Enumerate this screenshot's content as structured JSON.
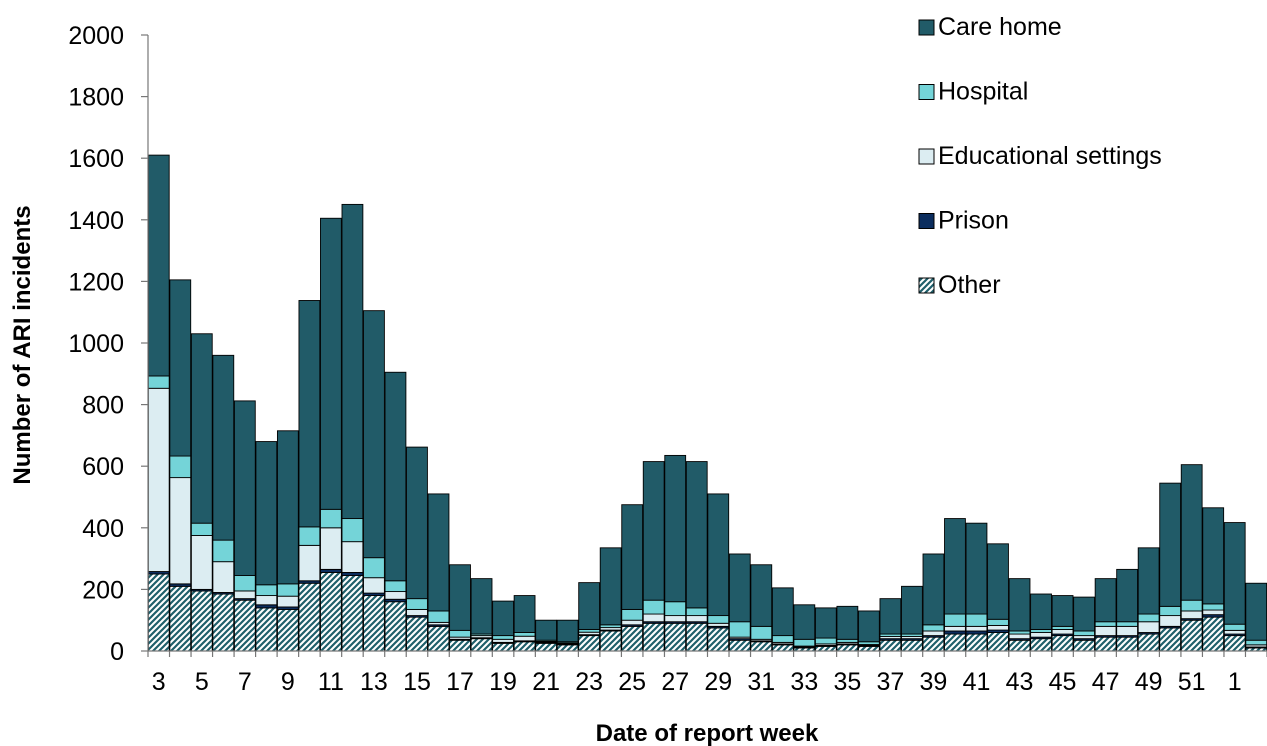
{
  "chart_data": {
    "type": "bar",
    "stacked": true,
    "title": "",
    "xlabel": "Date of report week",
    "ylabel": "Number of ARI incidents",
    "ylim": [
      0,
      2000
    ],
    "yticks": [
      0,
      200,
      400,
      600,
      800,
      1000,
      1200,
      1400,
      1600,
      1800,
      2000
    ],
    "categories": [
      "3",
      "4",
      "5",
      "6",
      "7",
      "8",
      "9",
      "10",
      "11",
      "12",
      "13",
      "14",
      "15",
      "16",
      "17",
      "18",
      "19",
      "20",
      "21",
      "22",
      "23",
      "24",
      "25",
      "26",
      "27",
      "28",
      "29",
      "30",
      "31",
      "32",
      "33",
      "34",
      "35",
      "36",
      "37",
      "38",
      "39",
      "40",
      "41",
      "42",
      "43",
      "44",
      "45",
      "46",
      "47",
      "48",
      "49",
      "50",
      "51",
      "52",
      "1",
      "2"
    ],
    "xtick_labels": [
      "3",
      "5",
      "7",
      "9",
      "11",
      "13",
      "15",
      "17",
      "19",
      "21",
      "23",
      "25",
      "27",
      "29",
      "31",
      "33",
      "35",
      "37",
      "39",
      "41",
      "43",
      "45",
      "47",
      "49",
      "51",
      "1"
    ],
    "legend": [
      "Care home",
      "Hospital",
      "Educational settings",
      "Prison",
      "Other"
    ],
    "legend_position": "top-right",
    "series": [
      {
        "name": "Other",
        "color": "#1f5f6b",
        "pattern": "hatched",
        "values": [
          250,
          210,
          195,
          185,
          165,
          140,
          135,
          220,
          255,
          245,
          180,
          160,
          110,
          80,
          35,
          40,
          25,
          30,
          25,
          20,
          50,
          65,
          80,
          90,
          90,
          90,
          75,
          35,
          30,
          20,
          10,
          15,
          20,
          15,
          35,
          35,
          45,
          55,
          55,
          60,
          35,
          40,
          50,
          35,
          45,
          45,
          55,
          75,
          100,
          110,
          50,
          10
        ]
      },
      {
        "name": "Prison",
        "color": "#0b2d5e",
        "values": [
          8,
          8,
          5,
          5,
          5,
          10,
          8,
          8,
          10,
          10,
          8,
          8,
          5,
          5,
          3,
          3,
          3,
          3,
          3,
          3,
          3,
          3,
          5,
          5,
          5,
          5,
          5,
          5,
          3,
          3,
          3,
          3,
          3,
          3,
          5,
          5,
          5,
          10,
          10,
          8,
          5,
          5,
          5,
          5,
          5,
          5,
          5,
          5,
          5,
          8,
          5,
          3
        ]
      },
      {
        "name": "Educational settings",
        "color": "#dcedf2",
        "values": [
          595,
          345,
          175,
          100,
          25,
          30,
          35,
          115,
          135,
          100,
          50,
          25,
          20,
          8,
          7,
          7,
          10,
          15,
          3,
          3,
          8,
          8,
          15,
          25,
          20,
          20,
          10,
          5,
          5,
          5,
          3,
          5,
          5,
          3,
          7,
          7,
          15,
          15,
          15,
          15,
          15,
          15,
          15,
          10,
          30,
          30,
          35,
          35,
          25,
          15,
          12,
          7
        ]
      },
      {
        "name": "Hospital",
        "color": "#74d4d8",
        "values": [
          40,
          70,
          40,
          70,
          50,
          35,
          40,
          60,
          60,
          75,
          65,
          35,
          35,
          37,
          22,
          5,
          12,
          12,
          4,
          4,
          9,
          9,
          35,
          45,
          45,
          25,
          25,
          50,
          42,
          22,
          22,
          19,
          10,
          9,
          8,
          8,
          20,
          40,
          40,
          20,
          10,
          10,
          10,
          15,
          15,
          15,
          25,
          30,
          35,
          20,
          20,
          15
        ]
      },
      {
        "name": "Care home",
        "color": "#215b68",
        "values": [
          717,
          572,
          615,
          600,
          567,
          465,
          497,
          735,
          945,
          1020,
          802,
          677,
          492,
          380,
          213,
          180,
          112,
          120,
          65,
          70,
          152,
          250,
          340,
          450,
          475,
          475,
          395,
          220,
          200,
          155,
          112,
          98,
          107,
          100,
          115,
          155,
          230,
          310,
          295,
          245,
          170,
          115,
          100,
          110,
          140,
          170,
          215,
          400,
          440,
          312,
          330,
          185
        ]
      }
    ]
  }
}
